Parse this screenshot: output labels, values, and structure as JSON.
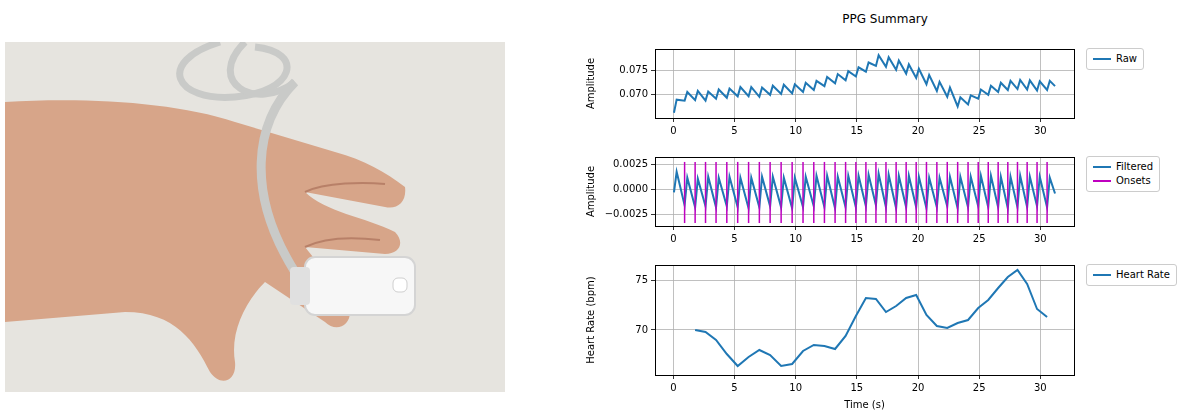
{
  "title": "PPG Summary",
  "chart_data": [
    {
      "type": "line",
      "y_label": "Amplitude",
      "grid": true,
      "legend": "right",
      "xlim": [
        -1.5,
        32.75
      ],
      "xticks": [
        0,
        5,
        10,
        15,
        20,
        25,
        30
      ],
      "ylim": [
        0.0652,
        0.0795
      ],
      "yticks": [
        {
          "value": 0.07,
          "label": "0.070"
        },
        {
          "value": 0.075,
          "label": "0.075"
        }
      ],
      "series": [
        {
          "name": "Raw",
          "color": "#1f77b4",
          "x": [
            0.05,
            0.27,
            0.92,
            1.14,
            1.78,
            2.0,
            2.63,
            2.85,
            3.49,
            3.71,
            4.37,
            4.59,
            5.26,
            5.48,
            6.15,
            6.37,
            7.03,
            7.25,
            7.91,
            8.13,
            8.81,
            9.03,
            9.71,
            9.93,
            10.6,
            10.82,
            11.48,
            11.7,
            12.35,
            12.57,
            13.22,
            13.44,
            14.08,
            14.3,
            14.92,
            15.14,
            15.74,
            15.96,
            16.56,
            16.78,
            17.38,
            17.6,
            18.21,
            18.43,
            19.03,
            19.25,
            19.85,
            20.07,
            20.69,
            20.91,
            21.54,
            21.76,
            22.39,
            22.61,
            23.24,
            23.46,
            24.09,
            24.31,
            24.92,
            25.14,
            25.74,
            25.96,
            26.55,
            26.77,
            27.34,
            27.56,
            28.13,
            28.35,
            28.92,
            29.14,
            29.73,
            29.95,
            30.55,
            30.77,
            31.2
          ],
          "values": [
            0.0663,
            0.069,
            0.0688,
            0.0706,
            0.0689,
            0.0708,
            0.0688,
            0.0707,
            0.0692,
            0.0711,
            0.0694,
            0.0713,
            0.0697,
            0.0716,
            0.0697,
            0.0716,
            0.0696,
            0.0715,
            0.07,
            0.0719,
            0.0702,
            0.0721,
            0.0703,
            0.0722,
            0.0706,
            0.0725,
            0.071,
            0.0729,
            0.0718,
            0.0737,
            0.0724,
            0.0743,
            0.073,
            0.0749,
            0.0738,
            0.0757,
            0.0748,
            0.0767,
            0.076,
            0.0782,
            0.0758,
            0.0778,
            0.0752,
            0.0771,
            0.0744,
            0.0763,
            0.0735,
            0.0754,
            0.0722,
            0.0741,
            0.0708,
            0.0727,
            0.0696,
            0.0715,
            0.0676,
            0.0695,
            0.068,
            0.0699,
            0.0692,
            0.0711,
            0.07,
            0.0719,
            0.0706,
            0.0725,
            0.071,
            0.0729,
            0.0712,
            0.0731,
            0.0711,
            0.073,
            0.0709,
            0.0728,
            0.071,
            0.0729,
            0.0718
          ]
        }
      ]
    },
    {
      "type": "line",
      "y_label": "Amplitude",
      "grid": true,
      "legend": "right",
      "xlim": [
        -1.5,
        32.75
      ],
      "xticks": [
        0,
        5,
        10,
        15,
        20,
        25,
        30
      ],
      "ylim": [
        -0.0037,
        0.0033
      ],
      "yticks": [
        {
          "value": -0.0025,
          "label": "−0.0025"
        },
        {
          "value": 0,
          "label": "0.0000"
        },
        {
          "value": 0.0025,
          "label": "0.0025"
        }
      ],
      "series": [
        {
          "name": "Filtered",
          "color": "#1f77b4",
          "x": [
            0.05,
            0.27,
            0.92,
            1.14,
            1.78,
            2.0,
            2.63,
            2.85,
            3.49,
            3.71,
            4.37,
            4.59,
            5.26,
            5.48,
            6.15,
            6.37,
            7.03,
            7.25,
            7.91,
            8.13,
            8.81,
            9.03,
            9.71,
            9.93,
            10.6,
            10.82,
            11.48,
            11.7,
            12.35,
            12.57,
            13.22,
            13.44,
            14.08,
            14.3,
            14.92,
            15.14,
            15.74,
            15.96,
            16.56,
            16.78,
            17.38,
            17.6,
            18.21,
            18.43,
            19.03,
            19.25,
            19.85,
            20.07,
            20.69,
            20.91,
            21.54,
            21.76,
            22.39,
            22.61,
            23.24,
            23.46,
            24.09,
            24.31,
            24.92,
            25.14,
            25.74,
            25.96,
            26.55,
            26.77,
            27.34,
            27.56,
            28.13,
            28.35,
            28.92,
            29.14,
            29.73,
            29.95,
            30.55,
            30.77,
            31.2
          ],
          "values": [
            -0.0003,
            0.0018,
            -0.0016,
            0.0012,
            -0.0018,
            0.0011,
            -0.0017,
            0.0013,
            -0.0018,
            0.0012,
            -0.0017,
            0.0013,
            -0.0018,
            0.0012,
            -0.0019,
            0.0012,
            -0.0018,
            0.0013,
            -0.0017,
            0.0013,
            -0.0018,
            0.0012,
            -0.0019,
            0.0012,
            -0.0018,
            0.0013,
            -0.0017,
            0.0014,
            -0.0018,
            0.0014,
            -0.0019,
            0.0013,
            -0.0018,
            0.0014,
            -0.0018,
            0.0014,
            -0.0017,
            0.0015,
            -0.0016,
            0.0016,
            -0.0018,
            0.0015,
            -0.0019,
            0.0014,
            -0.0018,
            0.0014,
            -0.0018,
            0.0013,
            -0.0019,
            0.0012,
            -0.0018,
            0.0012,
            -0.0017,
            0.0013,
            -0.0019,
            0.0013,
            -0.0018,
            0.0013,
            -0.0017,
            0.0014,
            -0.0018,
            0.0014,
            -0.0018,
            0.0013,
            -0.0019,
            0.0013,
            -0.0018,
            0.0014,
            -0.0018,
            0.0013,
            -0.0017,
            0.0013,
            -0.0018,
            0.0012,
            -0.0004
          ]
        },
        {
          "name": "Onsets",
          "type": "vlines",
          "color": "#bf00bf",
          "ymin": -0.0034,
          "ymax": 0.0028,
          "x": [
            0.92,
            1.78,
            2.63,
            3.49,
            4.37,
            5.26,
            6.15,
            7.03,
            7.91,
            8.81,
            9.71,
            10.6,
            11.48,
            12.35,
            13.22,
            14.08,
            14.92,
            15.74,
            16.56,
            17.38,
            18.21,
            19.03,
            19.85,
            20.69,
            21.54,
            22.39,
            23.24,
            24.09,
            24.92,
            25.74,
            26.55,
            27.34,
            28.13,
            28.92,
            29.73,
            30.55
          ]
        }
      ]
    },
    {
      "type": "line",
      "y_label": "Heart Rate (bpm)",
      "x_label": "Time (s)",
      "grid": true,
      "legend": "right",
      "xlim": [
        -1.5,
        32.75
      ],
      "xticks": [
        0,
        5,
        10,
        15,
        20,
        25,
        30
      ],
      "ylim": [
        65.5,
        76.5
      ],
      "yticks": [
        70,
        75
      ],
      "series": [
        {
          "name": "Heart Rate",
          "color": "#1f77b4",
          "x": [
            1.78,
            2.63,
            3.49,
            4.37,
            5.26,
            6.15,
            7.03,
            7.91,
            8.81,
            9.71,
            10.6,
            11.48,
            12.35,
            13.22,
            14.08,
            14.92,
            15.74,
            16.56,
            17.38,
            18.21,
            19.03,
            19.85,
            20.69,
            21.54,
            22.39,
            23.24,
            24.09,
            24.92,
            25.74,
            26.55,
            27.34,
            28.13,
            28.92,
            29.73,
            30.55
          ],
          "values": [
            70,
            69.8,
            69,
            67.6,
            66.4,
            67.3,
            68,
            67.5,
            66.4,
            66.6,
            67.9,
            68.5,
            68.4,
            68.1,
            69.4,
            71.4,
            73.2,
            73.1,
            71.8,
            72.4,
            73.2,
            73.5,
            71.5,
            70.4,
            70.2,
            70.7,
            71,
            72.2,
            73,
            74.2,
            75.3,
            76,
            74.6,
            72.1,
            71.3
          ]
        }
      ]
    }
  ]
}
